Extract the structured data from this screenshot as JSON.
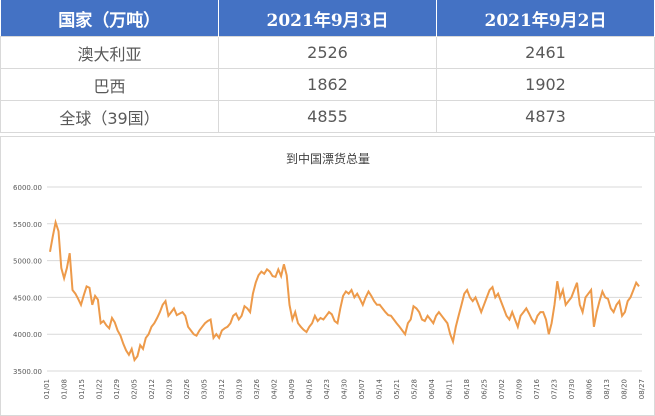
{
  "table": {
    "headers": [
      "国家（万吨）",
      "2021年9月3日",
      "2021年9月2日"
    ],
    "rows": [
      [
        "澳大利亚",
        "2526",
        "2461"
      ],
      [
        "巴西",
        "1862",
        "1902"
      ],
      [
        "全球（39国）",
        "4855",
        "4873"
      ]
    ]
  },
  "chart_data": {
    "type": "line",
    "title": "到中国漂货总量",
    "ylim": [
      3500,
      6000
    ],
    "yticks": [
      "6000.00",
      "5500.00",
      "5000.00",
      "4500.00",
      "4000.00",
      "3500.00"
    ],
    "xticks": [
      "01/01",
      "01/08",
      "01/15",
      "01/22",
      "01/29",
      "02/05",
      "02/12",
      "02/19",
      "02/26",
      "03/05",
      "03/12",
      "03/19",
      "03/26",
      "04/02",
      "04/09",
      "04/16",
      "04/23",
      "04/30",
      "05/07",
      "05/14",
      "05/21",
      "05/28",
      "06/04",
      "06/11",
      "06/18",
      "06/25",
      "07/02",
      "07/09",
      "07/16",
      "07/23",
      "07/30",
      "08/06",
      "08/13",
      "08/20",
      "08/27"
    ],
    "series_color": "#ed9a4a",
    "values": [
      5120,
      5330,
      5520,
      5400,
      4900,
      4760,
      4900,
      5100,
      4600,
      4550,
      4480,
      4400,
      4530,
      4650,
      4630,
      4400,
      4520,
      4470,
      4150,
      4180,
      4120,
      4080,
      4220,
      4160,
      4050,
      3980,
      3870,
      3780,
      3720,
      3800,
      3650,
      3700,
      3850,
      3800,
      3950,
      4000,
      4100,
      4150,
      4220,
      4300,
      4400,
      4450,
      4250,
      4300,
      4350,
      4260,
      4280,
      4300,
      4250,
      4100,
      4050,
      4000,
      3980,
      4050,
      4100,
      4150,
      4180,
      4200,
      3950,
      4000,
      3950,
      4050,
      4080,
      4100,
      4150,
      4250,
      4280,
      4200,
      4250,
      4380,
      4350,
      4300,
      4550,
      4700,
      4800,
      4850,
      4820,
      4880,
      4850,
      4790,
      4780,
      4880,
      4790,
      4950,
      4800,
      4400,
      4200,
      4300,
      4150,
      4100,
      4060,
      4030,
      4100,
      4150,
      4250,
      4180,
      4220,
      4200,
      4250,
      4300,
      4270,
      4180,
      4150,
      4350,
      4520,
      4580,
      4550,
      4600,
      4500,
      4550,
      4480,
      4400,
      4500,
      4580,
      4520,
      4450,
      4400,
      4400,
      4350,
      4300,
      4260,
      4250,
      4200,
      4150,
      4100,
      4050,
      4000,
      4150,
      4200,
      4380,
      4350,
      4300,
      4200,
      4180,
      4250,
      4200,
      4150,
      4250,
      4300,
      4250,
      4200,
      4150,
      4000,
      3900,
      4100,
      4250,
      4400,
      4550,
      4600,
      4500,
      4450,
      4500,
      4400,
      4300,
      4400,
      4500,
      4600,
      4640,
      4500,
      4550,
      4450,
      4350,
      4250,
      4200,
      4300,
      4200,
      4100,
      4250,
      4300,
      4350,
      4280,
      4200,
      4150,
      4250,
      4300,
      4300,
      4200,
      4000,
      4150,
      4400,
      4720,
      4500,
      4600,
      4400,
      4450,
      4500,
      4600,
      4700,
      4400,
      4300,
      4500,
      4550,
      4600,
      4100,
      4300,
      4450,
      4580,
      4500,
      4480,
      4350,
      4300,
      4400,
      4450,
      4250,
      4300,
      4450,
      4500,
      4600,
      4700,
      4650
    ]
  }
}
